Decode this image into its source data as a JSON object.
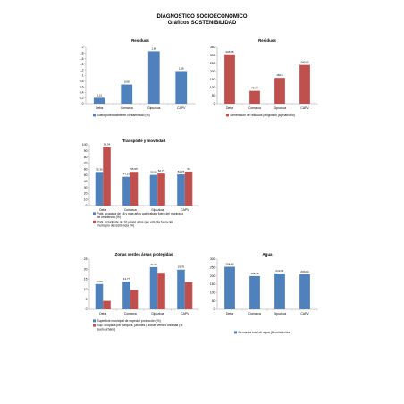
{
  "page": {
    "title": "DIAGNOSTICO SOCIOECONOMICO",
    "subtitle": "Gráficos SOSTENIBILIDAD"
  },
  "colors": {
    "blue": "#4f81bd",
    "red": "#c0504d",
    "axis": "#999999",
    "grid": "#d9d9d9"
  },
  "chart_data": [
    {
      "id": "residuos-suelos",
      "type": "bar",
      "title": "Residuos",
      "categories": [
        "Deba",
        "Comarca",
        "Gipuzkoa",
        "CAPV"
      ],
      "series": [
        {
          "name": "Suelo potencialmente contaminado (%)",
          "values": [
            0.21,
            0.68,
            1.86,
            1.16
          ],
          "color": "#4f81bd"
        }
      ],
      "value_labels": [
        [
          "0,21",
          "0,68",
          "1,86",
          "1,16"
        ]
      ],
      "ylim": [
        0,
        2
      ],
      "yticks": [
        0,
        0.2,
        0.4,
        0.6,
        0.8,
        1,
        1.2,
        1.4,
        1.6,
        1.8,
        2
      ],
      "ytick_labels": [
        "0",
        "0,2",
        "0,4",
        "0,6",
        "0,8",
        "1",
        "1,2",
        "1,4",
        "1,6",
        "1,8",
        "2"
      ],
      "grid": false,
      "legend": "bottom"
    },
    {
      "id": "residuos-peligrosos",
      "type": "bar",
      "title": "Residuos",
      "categories": [
        "Deba",
        "Comarca",
        "Gipuzkoa",
        "CAPV"
      ],
      "series": [
        {
          "name": "Generacion de residuos peligrosos (kg/hab/año)",
          "values": [
            306.85,
            79.77,
            160.1,
            240.82
          ],
          "color": "#c0504d"
        }
      ],
      "value_labels": [
        [
          "306,85",
          "79,77",
          "160,1",
          "240,82"
        ]
      ],
      "ylim": [
        0,
        350
      ],
      "yticks": [
        0,
        50,
        100,
        150,
        200,
        250,
        300,
        350
      ],
      "ytick_labels": [
        "0",
        "50",
        "100",
        "150",
        "200",
        "250",
        "300",
        "350"
      ],
      "grid": false,
      "legend": "bottom"
    },
    {
      "id": "transporte",
      "type": "bar",
      "title": "Transporte y movilidad",
      "categories": [
        "Deba",
        "Comarca",
        "Gipuzkoa",
        "CAPV"
      ],
      "series": [
        {
          "name": "Pobl. ocupada de 16 y más años que trabaja fuera del municipio de residencia (%)",
          "values": [
            55.36,
            47.51,
            50.56,
            51.37
          ],
          "color": "#4f81bd"
        },
        {
          "name": "Pobl. estudiante de 16 y mas años que estudia fuera del municipio de residencia (%)",
          "values": [
            96.34,
            55.55,
            52.75,
            56
          ],
          "color": "#c0504d"
        }
      ],
      "value_labels": [
        [
          "55,36",
          "47,51",
          "50,56",
          "51,37"
        ],
        [
          "96,34",
          "55,55",
          "52,75",
          "56"
        ]
      ],
      "ylim": [
        0,
        100
      ],
      "yticks": [
        0,
        10,
        20,
        30,
        40,
        50,
        60,
        70,
        80,
        90,
        100
      ],
      "ytick_labels": [
        "0",
        "10",
        "20",
        "30",
        "40",
        "50",
        "60",
        "70",
        "80",
        "90",
        "100"
      ],
      "grid": false,
      "legend": "bottom"
    },
    {
      "id": "zonas-verdes",
      "type": "bar",
      "title": "Zonas verdes áreas protegidas",
      "categories": [
        "Deba",
        "Comarca",
        "Gipuzkoa",
        "CAPV"
      ],
      "series": [
        {
          "name": "Superficie municipal de especial protección (%)",
          "values": [
            12.59,
            13.77,
            21.03,
            19.76
          ],
          "color": "#4f81bd"
        },
        {
          "name": "Sup. ocupada por parques, jardines y zonas verdes urbanas (% suelo urbano)",
          "values": [
            4.2,
            9.6,
            18.2,
            13.6
          ],
          "color": "#c0504d"
        }
      ],
      "value_labels": [
        [
          "12,59",
          "13,77",
          "21,03",
          "19,76"
        ],
        []
      ],
      "ylim": [
        0,
        25
      ],
      "yticks": [
        0,
        5,
        10,
        15,
        20,
        25
      ],
      "ytick_labels": [
        "0",
        "5",
        "10",
        "15",
        "20",
        "25"
      ],
      "grid": false,
      "legend": "bottom"
    },
    {
      "id": "agua",
      "type": "bar",
      "title": "Agua",
      "categories": [
        "Deba",
        "Comarca",
        "Gipuzkoa",
        "CAPV"
      ],
      "series": [
        {
          "name": "Demanda total de agua (litros/hab./día)",
          "values": [
            254.45,
            198.76,
            213.81,
            209.84
          ],
          "color": "#4f81bd"
        }
      ],
      "value_labels": [
        [
          "254,45",
          "198,76",
          "213,81",
          "209,84"
        ]
      ],
      "ylim": [
        0,
        300
      ],
      "yticks": [
        0,
        50,
        100,
        150,
        200,
        250,
        300
      ],
      "ytick_labels": [
        "0",
        "50",
        "100",
        "150",
        "200",
        "250",
        "300"
      ],
      "grid": false,
      "legend": "bottom"
    }
  ]
}
